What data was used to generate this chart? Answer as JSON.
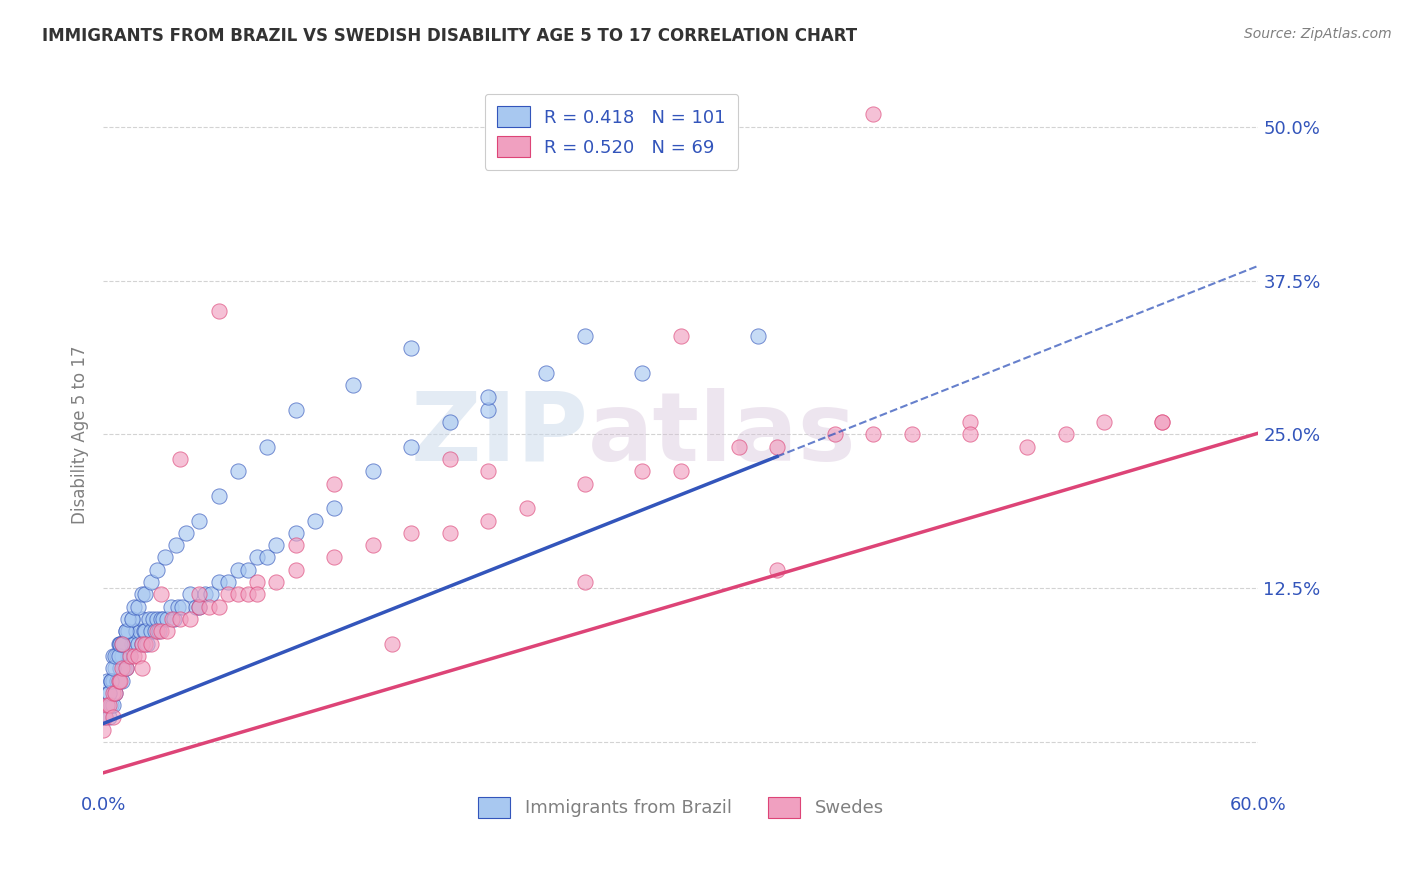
{
  "title": "IMMIGRANTS FROM BRAZIL VS SWEDISH DISABILITY AGE 5 TO 17 CORRELATION CHART",
  "source": "Source: ZipAtlas.com",
  "ylabel": "Disability Age 5 to 17",
  "xlim": [
    0.0,
    0.6
  ],
  "ylim": [
    -0.04,
    0.54
  ],
  "xticks": [
    0.0,
    0.1,
    0.2,
    0.3,
    0.4,
    0.5,
    0.6
  ],
  "xtick_labels": [
    "0.0%",
    "",
    "",
    "",
    "",
    "",
    "60.0%"
  ],
  "yticks": [
    0.0,
    0.125,
    0.25,
    0.375,
    0.5
  ],
  "ytick_labels": [
    "",
    "12.5%",
    "25.0%",
    "37.5%",
    "50.0%"
  ],
  "legend_label1": "Immigrants from Brazil",
  "legend_label2": "Swedes",
  "r1": 0.418,
  "n1": 101,
  "r2": 0.52,
  "n2": 69,
  "color_brazil": "#A8C8F0",
  "color_swedes": "#F0A0C0",
  "line_color_brazil": "#3355BB",
  "line_color_swedes": "#DD4477",
  "brazil_line_solid_end": 0.35,
  "brazil_line_intercept": 0.015,
  "brazil_line_slope": 0.62,
  "swedes_line_intercept": -0.025,
  "swedes_line_slope": 0.46,
  "watermark_zip": "ZIP",
  "watermark_atlas": "atlas",
  "brazil_x": [
    0.001,
    0.002,
    0.002,
    0.003,
    0.003,
    0.004,
    0.004,
    0.005,
    0.005,
    0.005,
    0.006,
    0.006,
    0.007,
    0.007,
    0.008,
    0.008,
    0.009,
    0.009,
    0.01,
    0.01,
    0.011,
    0.011,
    0.012,
    0.012,
    0.013,
    0.013,
    0.014,
    0.015,
    0.015,
    0.016,
    0.017,
    0.018,
    0.019,
    0.02,
    0.02,
    0.021,
    0.022,
    0.023,
    0.024,
    0.025,
    0.026,
    0.027,
    0.028,
    0.029,
    0.03,
    0.031,
    0.033,
    0.035,
    0.037,
    0.039,
    0.041,
    0.045,
    0.048,
    0.05,
    0.053,
    0.056,
    0.06,
    0.065,
    0.07,
    0.075,
    0.08,
    0.085,
    0.09,
    0.1,
    0.11,
    0.12,
    0.14,
    0.16,
    0.18,
    0.2,
    0.23,
    0.25,
    0.003,
    0.004,
    0.005,
    0.006,
    0.008,
    0.009,
    0.01,
    0.012,
    0.013,
    0.015,
    0.016,
    0.018,
    0.02,
    0.022,
    0.025,
    0.028,
    0.032,
    0.038,
    0.043,
    0.05,
    0.06,
    0.07,
    0.085,
    0.1,
    0.13,
    0.16,
    0.2,
    0.28,
    0.34
  ],
  "brazil_y": [
    0.02,
    0.03,
    0.05,
    0.02,
    0.04,
    0.03,
    0.05,
    0.03,
    0.05,
    0.07,
    0.04,
    0.06,
    0.05,
    0.07,
    0.05,
    0.08,
    0.06,
    0.08,
    0.05,
    0.07,
    0.06,
    0.08,
    0.06,
    0.09,
    0.07,
    0.09,
    0.07,
    0.08,
    0.1,
    0.08,
    0.09,
    0.08,
    0.09,
    0.08,
    0.1,
    0.09,
    0.09,
    0.08,
    0.1,
    0.09,
    0.1,
    0.09,
    0.1,
    0.09,
    0.1,
    0.1,
    0.1,
    0.11,
    0.1,
    0.11,
    0.11,
    0.12,
    0.11,
    0.11,
    0.12,
    0.12,
    0.13,
    0.13,
    0.14,
    0.14,
    0.15,
    0.15,
    0.16,
    0.17,
    0.18,
    0.19,
    0.22,
    0.24,
    0.26,
    0.27,
    0.3,
    0.33,
    0.04,
    0.05,
    0.06,
    0.07,
    0.07,
    0.08,
    0.08,
    0.09,
    0.1,
    0.1,
    0.11,
    0.11,
    0.12,
    0.12,
    0.13,
    0.14,
    0.15,
    0.16,
    0.17,
    0.18,
    0.2,
    0.22,
    0.24,
    0.27,
    0.29,
    0.32,
    0.28,
    0.3,
    0.33
  ],
  "swedes_x": [
    0.0,
    0.001,
    0.002,
    0.003,
    0.005,
    0.006,
    0.008,
    0.009,
    0.01,
    0.012,
    0.014,
    0.016,
    0.018,
    0.02,
    0.022,
    0.025,
    0.028,
    0.03,
    0.033,
    0.036,
    0.04,
    0.045,
    0.05,
    0.055,
    0.06,
    0.065,
    0.07,
    0.075,
    0.08,
    0.09,
    0.1,
    0.12,
    0.14,
    0.16,
    0.18,
    0.2,
    0.22,
    0.25,
    0.28,
    0.3,
    0.33,
    0.35,
    0.38,
    0.4,
    0.42,
    0.45,
    0.48,
    0.5,
    0.52,
    0.55,
    0.005,
    0.01,
    0.02,
    0.03,
    0.05,
    0.08,
    0.12,
    0.18,
    0.25,
    0.35,
    0.45,
    0.55,
    0.3,
    0.4,
    0.2,
    0.15,
    0.1,
    0.06,
    0.04
  ],
  "swedes_y": [
    0.01,
    0.02,
    0.03,
    0.03,
    0.04,
    0.04,
    0.05,
    0.05,
    0.06,
    0.06,
    0.07,
    0.07,
    0.07,
    0.08,
    0.08,
    0.08,
    0.09,
    0.09,
    0.09,
    0.1,
    0.1,
    0.1,
    0.11,
    0.11,
    0.11,
    0.12,
    0.12,
    0.12,
    0.13,
    0.13,
    0.14,
    0.15,
    0.16,
    0.17,
    0.17,
    0.18,
    0.19,
    0.21,
    0.22,
    0.22,
    0.24,
    0.24,
    0.25,
    0.25,
    0.25,
    0.26,
    0.24,
    0.25,
    0.26,
    0.26,
    0.02,
    0.08,
    0.06,
    0.12,
    0.12,
    0.12,
    0.21,
    0.23,
    0.13,
    0.14,
    0.25,
    0.26,
    0.33,
    0.51,
    0.22,
    0.08,
    0.16,
    0.35,
    0.23
  ]
}
